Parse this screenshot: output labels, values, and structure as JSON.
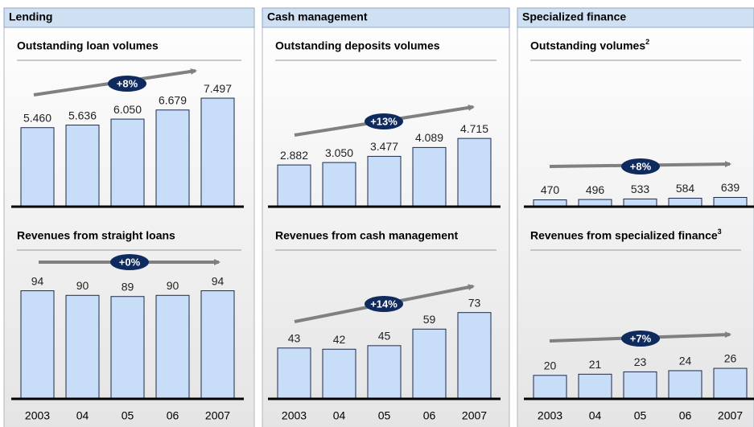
{
  "chart_data": [
    {
      "type": "bar",
      "section": "Lending",
      "title": "Outstanding loan volumes",
      "annotation": "+8%",
      "values": [
        5.46,
        5.636,
        6.05,
        6.679,
        7.497
      ],
      "value_labels": [
        "5.460",
        "5.636",
        "6.050",
        "6.679",
        "7.497"
      ],
      "color": "#c8def8"
    },
    {
      "type": "bar",
      "title": "Revenues from straight loans",
      "annotation": "+0%",
      "categories": [
        "2003",
        "04",
        "05",
        "06",
        "2007"
      ],
      "values": [
        94,
        90,
        89,
        90,
        94
      ],
      "color": "#c8def8"
    },
    {
      "type": "bar",
      "section": "Cash management",
      "title": "Outstanding deposits volumes",
      "annotation": "+13%",
      "values": [
        2.882,
        3.05,
        3.477,
        4.089,
        4.715
      ],
      "value_labels": [
        "2.882",
        "3.050",
        "3.477",
        "4.089",
        "4.715"
      ],
      "color": "#c8def8"
    },
    {
      "type": "bar",
      "title": "Revenues from cash management",
      "annotation": "+14%",
      "categories": [
        "2003",
        "04",
        "05",
        "06",
        "2007"
      ],
      "values": [
        43,
        42,
        45,
        59,
        73
      ],
      "color": "#c8def8"
    },
    {
      "type": "bar",
      "section": "Specialized finance",
      "title": "Outstanding volumes",
      "title_note": "2",
      "annotation": "+8%",
      "values": [
        470,
        496,
        533,
        584,
        639
      ],
      "color": "#c8def8"
    },
    {
      "type": "bar",
      "title": "Revenues from specialized finance",
      "title_note": "3",
      "annotation": "+7%",
      "categories": [
        "2003",
        "04",
        "05",
        "06",
        "2007"
      ],
      "values": [
        20,
        21,
        23,
        24,
        26
      ],
      "color": "#c8def8"
    }
  ]
}
